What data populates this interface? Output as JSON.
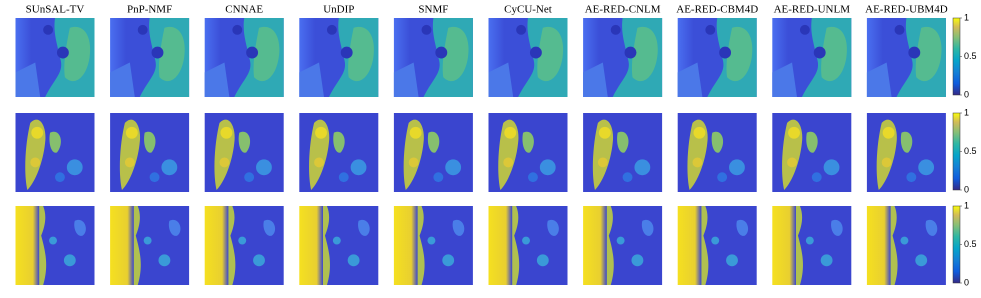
{
  "figure": {
    "columns": [
      "SUnSAL-TV",
      "PnP-NMF",
      "CNNAE",
      "UnDIP",
      "SNMF",
      "CyCU-Net",
      "AE-RED-CNLM",
      "AE-RED-CBM4D",
      "AE-RED-UNLM",
      "AE-RED-UBM4D"
    ],
    "colorbars": [
      {
        "ticks": [
          "1",
          "0.5",
          "0"
        ]
      },
      {
        "ticks": [
          "1",
          "0.5",
          "0"
        ]
      },
      {
        "ticks": [
          "1",
          "0.5",
          "0"
        ]
      }
    ]
  }
}
